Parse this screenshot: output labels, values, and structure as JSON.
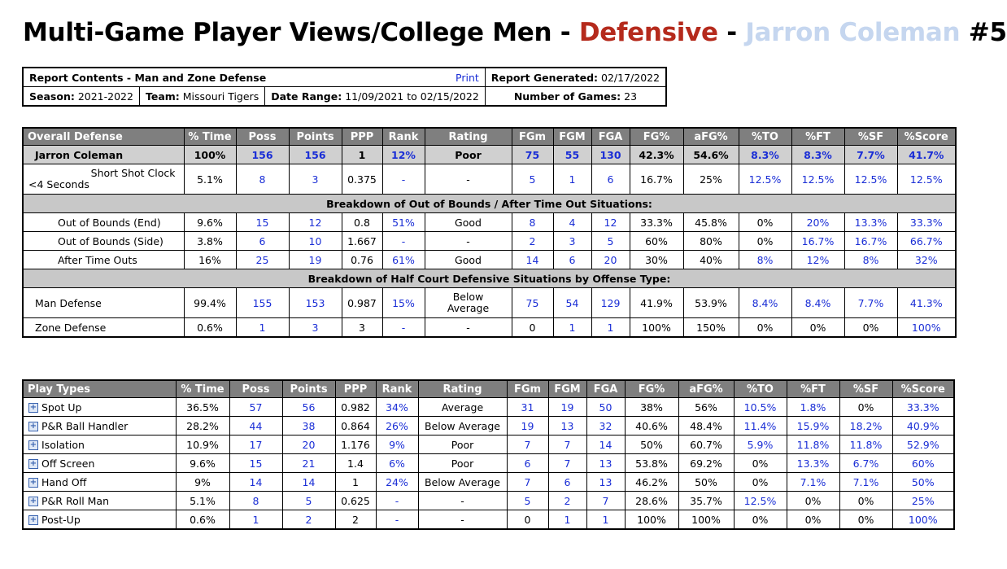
{
  "title": {
    "part1": "Multi-Game Player Views/College Men - ",
    "part2": "Defensive",
    "part3": " - ",
    "part4": "Jarron Coleman",
    "part5": " #5"
  },
  "info": {
    "report_contents": "Report Contents - Man and Zone Defense",
    "print": "Print",
    "report_generated_label": "Report Generated:",
    "report_generated": "02/17/2022",
    "season_label": "Season:",
    "season": "2021-2022",
    "team_label": "Team:",
    "team": "Missouri Tigers",
    "date_range_label": "Date Range:",
    "date_range": "11/09/2021 to 02/15/2022",
    "games_label": "Number of Games:",
    "games": "23"
  },
  "headers": [
    "% Time",
    "Poss",
    "Points",
    "PPP",
    "Rank",
    "Rating",
    "FGm",
    "FGM",
    "FGA",
    "FG%",
    "aFG%",
    "%TO",
    "%FT",
    "%SF",
    "%Score"
  ],
  "overall": {
    "heading": "Overall Defense",
    "player": {
      "label": "Jarron Coleman",
      "values": [
        "100%",
        "156",
        "156",
        "1",
        "12%",
        "Poor",
        "75",
        "55",
        "130",
        "42.3%",
        "54.6%",
        "8.3%",
        "8.3%",
        "7.7%",
        "41.7%"
      ]
    },
    "short_clock": {
      "label1": "Short Shot Clock",
      "label2": "<4 Seconds",
      "values": [
        "5.1%",
        "8",
        "3",
        "0.375",
        "-",
        "-",
        "5",
        "1",
        "6",
        "16.7%",
        "25%",
        "12.5%",
        "12.5%",
        "12.5%",
        "12.5%"
      ]
    },
    "section1": "Breakdown of Out of Bounds / After Time Out Situations:",
    "oob": [
      {
        "label": "Out of Bounds (End)",
        "values": [
          "9.6%",
          "15",
          "12",
          "0.8",
          "51%",
          "Good",
          "8",
          "4",
          "12",
          "33.3%",
          "45.8%",
          "0%",
          "20%",
          "13.3%",
          "33.3%"
        ]
      },
      {
        "label": "Out of Bounds (Side)",
        "values": [
          "3.8%",
          "6",
          "10",
          "1.667",
          "-",
          "-",
          "2",
          "3",
          "5",
          "60%",
          "80%",
          "0%",
          "16.7%",
          "16.7%",
          "66.7%"
        ]
      },
      {
        "label": "After Time Outs",
        "values": [
          "16%",
          "25",
          "19",
          "0.76",
          "61%",
          "Good",
          "14",
          "6",
          "20",
          "30%",
          "40%",
          "8%",
          "12%",
          "8%",
          "32%"
        ]
      }
    ],
    "section2": "Breakdown of Half Court Defensive Situations by Offense Type:",
    "man": {
      "label": "Man Defense",
      "values": [
        "99.4%",
        "155",
        "153",
        "0.987",
        "15%",
        "Below",
        "75",
        "54",
        "129",
        "41.9%",
        "53.9%",
        "8.4%",
        "8.4%",
        "7.7%",
        "41.3%"
      ],
      "rating2": "Average"
    },
    "zone": {
      "label": "Zone Defense",
      "values": [
        "0.6%",
        "1",
        "3",
        "3",
        "-",
        "-",
        "0",
        "1",
        "1",
        "100%",
        "150%",
        "0%",
        "0%",
        "0%",
        "100%"
      ]
    }
  },
  "play_types": {
    "heading": "Play Types",
    "rows": [
      {
        "label": "Spot Up",
        "values": [
          "36.5%",
          "57",
          "56",
          "0.982",
          "34%",
          "Average",
          "31",
          "19",
          "50",
          "38%",
          "56%",
          "10.5%",
          "1.8%",
          "0%",
          "33.3%"
        ]
      },
      {
        "label": "P&R Ball Handler",
        "values": [
          "28.2%",
          "44",
          "38",
          "0.864",
          "26%",
          "Below Average",
          "19",
          "13",
          "32",
          "40.6%",
          "48.4%",
          "11.4%",
          "15.9%",
          "18.2%",
          "40.9%"
        ]
      },
      {
        "label": "Isolation",
        "values": [
          "10.9%",
          "17",
          "20",
          "1.176",
          "9%",
          "Poor",
          "7",
          "7",
          "14",
          "50%",
          "60.7%",
          "5.9%",
          "11.8%",
          "11.8%",
          "52.9%"
        ]
      },
      {
        "label": "Off Screen",
        "values": [
          "9.6%",
          "15",
          "21",
          "1.4",
          "6%",
          "Poor",
          "6",
          "7",
          "13",
          "53.8%",
          "69.2%",
          "0%",
          "13.3%",
          "6.7%",
          "60%"
        ]
      },
      {
        "label": "Hand Off",
        "values": [
          "9%",
          "14",
          "14",
          "1",
          "24%",
          "Below Average",
          "7",
          "6",
          "13",
          "46.2%",
          "50%",
          "0%",
          "7.1%",
          "7.1%",
          "50%"
        ]
      },
      {
        "label": "P&R Roll Man",
        "values": [
          "5.1%",
          "8",
          "5",
          "0.625",
          "-",
          "-",
          "5",
          "2",
          "7",
          "28.6%",
          "35.7%",
          "12.5%",
          "0%",
          "0%",
          "25%"
        ]
      },
      {
        "label": "Post-Up",
        "values": [
          "0.6%",
          "1",
          "2",
          "2",
          "-",
          "-",
          "0",
          "1",
          "1",
          "100%",
          "100%",
          "0%",
          "0%",
          "0%",
          "100%"
        ]
      }
    ]
  },
  "colors": {
    "accent_red": "#b52a1c",
    "player_light": "#c5d6ef",
    "link_blue": "#1a2ed6",
    "header_gray": "#7f7f7f"
  }
}
